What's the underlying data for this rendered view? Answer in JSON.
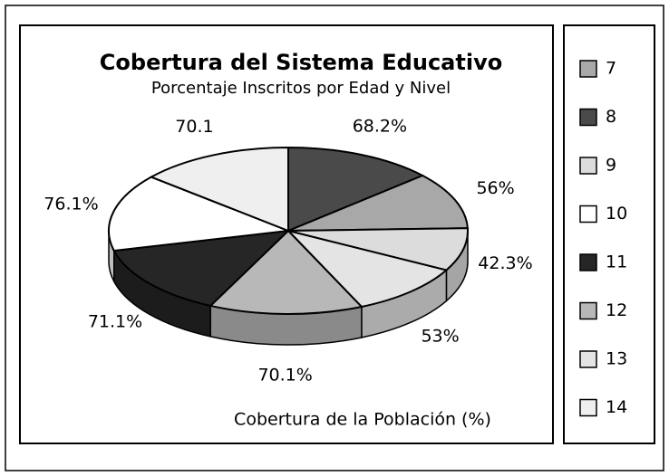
{
  "chart_data": {
    "type": "pie",
    "title": "Cobertura del Sistema Educativo",
    "subtitle": "Porcentaje Inscritos por Edad y Nivel",
    "caption": "Cobertura de la Población (%)",
    "categories": [
      "7",
      "8",
      "9",
      "10",
      "11",
      "12",
      "13",
      "14"
    ],
    "values": [
      56,
      68.2,
      42.3,
      76.1,
      71.1,
      70.1,
      53,
      70.1
    ],
    "value_labels": [
      "56%",
      "68.2%",
      "42.3%",
      "76.1%",
      "71.1%",
      "70.1%",
      "53%",
      "70.1"
    ],
    "colors": [
      "#a8a8a8",
      "#4a4a4a",
      "#dcdcdc",
      "#ffffff",
      "#262626",
      "#b8b8b8",
      "#e4e4e4",
      "#efefef"
    ],
    "legend": "right"
  }
}
